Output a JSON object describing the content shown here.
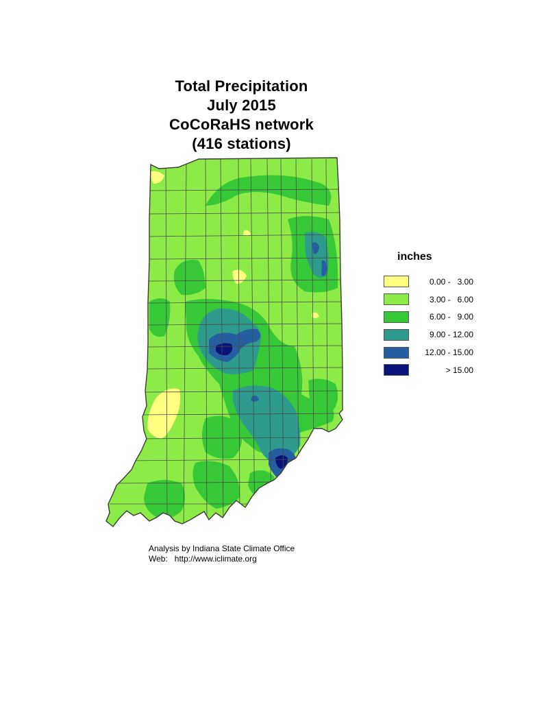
{
  "title": {
    "line1": "Total Precipitation",
    "line2": "July 2015",
    "line3": "CoCoRaHS network",
    "line4": "(416 stations)"
  },
  "legend": {
    "title": "inches",
    "items": [
      {
        "label": "0.00 -   3.00",
        "color": "#FFFF80"
      },
      {
        "label": "3.00 -   6.00",
        "color": "#8CEB46"
      },
      {
        "label": "6.00 -   9.00",
        "color": "#37C837"
      },
      {
        "label": "9.00 - 12.00",
        "color": "#2E9B8C"
      },
      {
        "label": "12.00 - 15.00",
        "color": "#255FA0"
      },
      {
        "label": "> 15.00",
        "color": "#0A1478"
      }
    ]
  },
  "credits": {
    "line1": "Analysis by Indiana State Climate Office",
    "line2": "Web:   http://www.iclimate.org"
  },
  "map": {
    "region": "Indiana",
    "border_color": "#3a3a3a"
  }
}
